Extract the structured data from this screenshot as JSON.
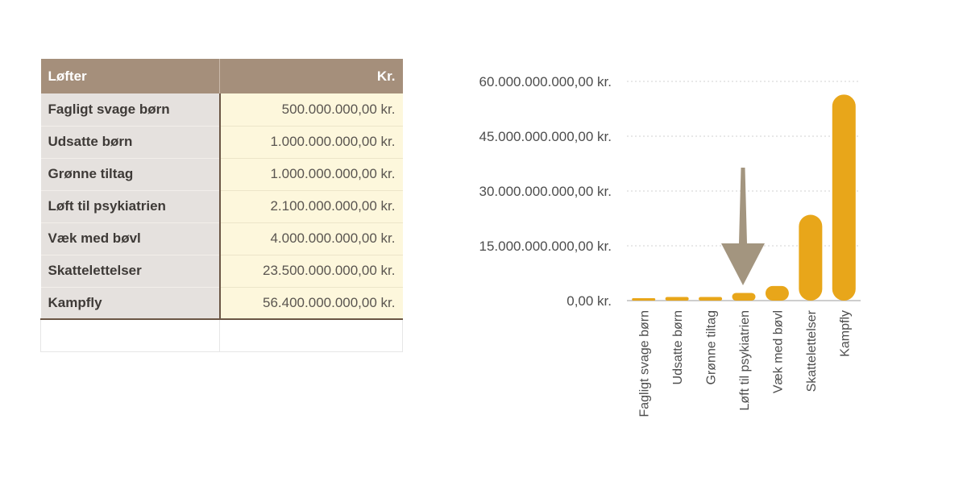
{
  "table": {
    "headers": [
      "Løfter",
      "Kr."
    ],
    "rows": [
      [
        "Fagligt svage børn",
        "500.000.000,00 kr."
      ],
      [
        "Udsatte børn",
        "1.000.000.000,00 kr."
      ],
      [
        "Grønne tiltag",
        "1.000.000.000,00 kr."
      ],
      [
        "Løft til psykiatrien",
        "2.100.000.000,00 kr."
      ],
      [
        "Væk med bøvl",
        "4.000.000.000,00 kr."
      ],
      [
        "Skattelettelser",
        "23.500.000.000,00 kr."
      ],
      [
        "Kampfly",
        "56.400.000.000,00 kr."
      ]
    ]
  },
  "chart_data": {
    "type": "bar",
    "categories": [
      "Fagligt svage børn",
      "Udsatte børn",
      "Grønne tiltag",
      "Løft til psykiatrien",
      "Væk med bøvl",
      "Skattelettelser",
      "Kampfly"
    ],
    "values": [
      500000000,
      1000000000,
      1000000000,
      2100000000,
      4000000000,
      23500000000,
      56400000000
    ],
    "yticks": [
      0,
      15000000000,
      30000000000,
      45000000000,
      60000000000
    ],
    "ytick_labels": [
      "0,00 kr.",
      "15.000.000.000,00 kr.",
      "30.000.000.000,00 kr.",
      "45.000.000.000,00 kr.",
      "60.000.000.000,00 kr."
    ],
    "ylim": [
      0,
      60000000000
    ],
    "grid": true,
    "annotation": {
      "type": "arrow",
      "target": "Løft til psykiatrien"
    },
    "colors": {
      "bar": "#e8a61a",
      "arrow": "#a3957f",
      "grid": "#d0d0d0",
      "axis": "#bdbdbd"
    }
  }
}
